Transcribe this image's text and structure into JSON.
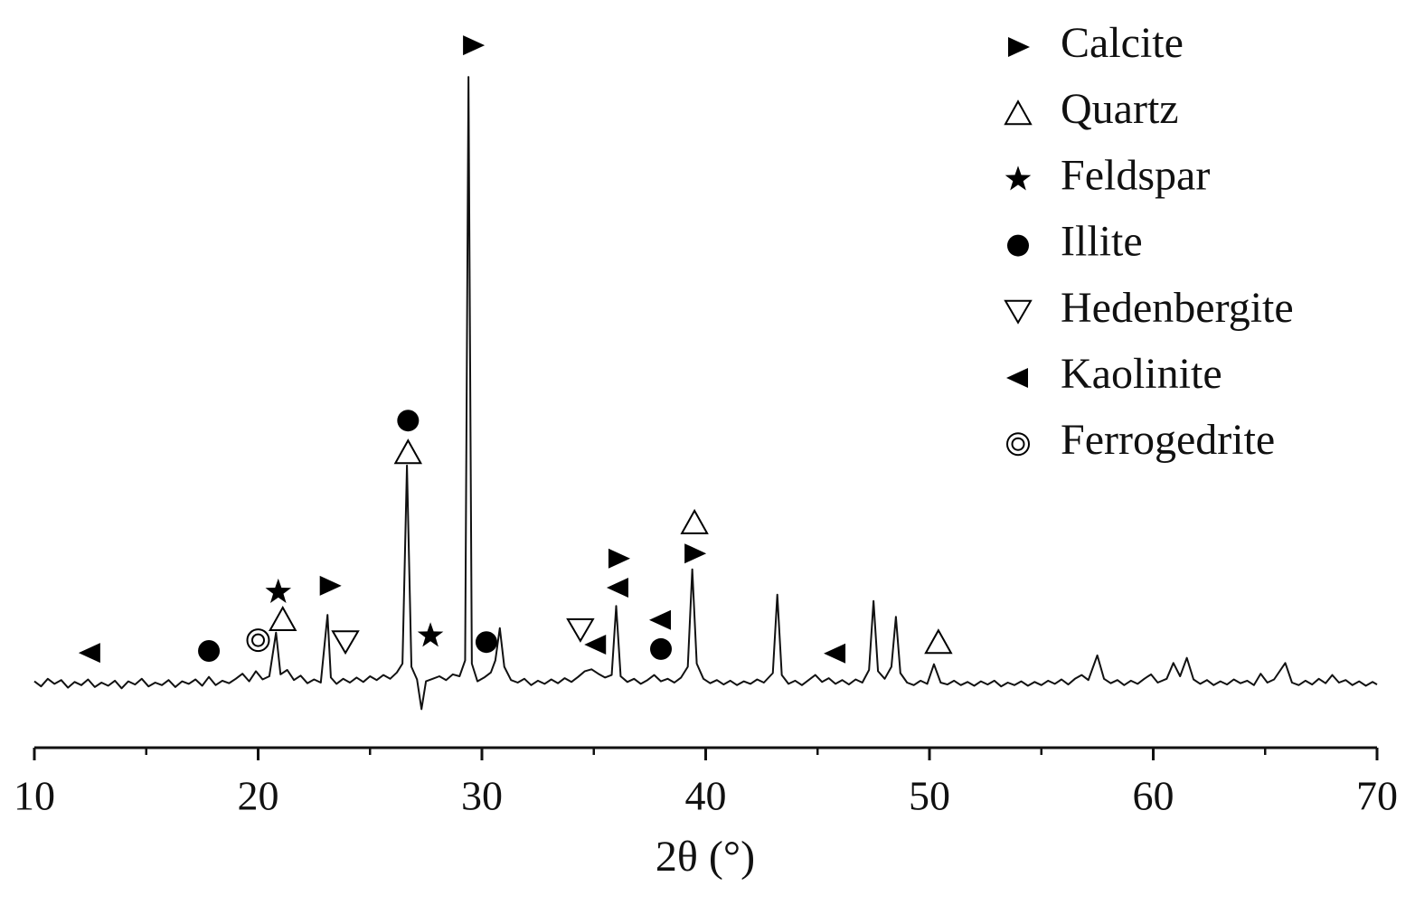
{
  "chart_data": {
    "type": "line",
    "x_label": "2θ (°)",
    "xlim": [
      10,
      70
    ],
    "xticks": [
      10,
      20,
      30,
      40,
      50,
      60,
      70
    ],
    "xminorticks": [
      15,
      25,
      35,
      45,
      55,
      65
    ],
    "ylim": [
      0,
      110
    ],
    "color": "#111111",
    "x": [
      10.0,
      10.3,
      10.6,
      10.9,
      11.2,
      11.5,
      11.8,
      12.1,
      12.4,
      12.7,
      13.0,
      13.3,
      13.6,
      13.9,
      14.2,
      14.5,
      14.8,
      15.1,
      15.4,
      15.7,
      16.0,
      16.3,
      16.6,
      16.9,
      17.2,
      17.5,
      17.8,
      18.1,
      18.4,
      18.7,
      19.0,
      19.3,
      19.6,
      19.9,
      20.2,
      20.5,
      20.8,
      21.0,
      21.3,
      21.6,
      21.9,
      22.2,
      22.5,
      22.8,
      23.1,
      23.25,
      23.5,
      23.8,
      24.1,
      24.4,
      24.7,
      25.0,
      25.3,
      25.6,
      25.9,
      26.2,
      26.45,
      26.65,
      26.85,
      27.1,
      27.3,
      27.5,
      27.8,
      28.1,
      28.4,
      28.7,
      29.0,
      29.25,
      29.4,
      29.55,
      29.8,
      30.1,
      30.4,
      30.6,
      30.8,
      31.0,
      31.3,
      31.6,
      31.9,
      32.2,
      32.5,
      32.8,
      33.1,
      33.4,
      33.7,
      34.0,
      34.3,
      34.6,
      34.9,
      35.2,
      35.5,
      35.8,
      36.0,
      36.2,
      36.5,
      36.8,
      37.1,
      37.4,
      37.7,
      38.0,
      38.3,
      38.6,
      38.9,
      39.2,
      39.4,
      39.6,
      39.9,
      40.2,
      40.5,
      40.8,
      41.1,
      41.4,
      41.7,
      42.0,
      42.3,
      42.6,
      43.0,
      43.2,
      43.4,
      43.7,
      44.0,
      44.3,
      44.6,
      44.9,
      45.2,
      45.5,
      45.8,
      46.1,
      46.4,
      46.7,
      47.0,
      47.3,
      47.5,
      47.7,
      48.0,
      48.3,
      48.5,
      48.7,
      49.0,
      49.3,
      49.6,
      49.9,
      50.2,
      50.5,
      50.8,
      51.1,
      51.4,
      51.7,
      52.0,
      52.3,
      52.6,
      52.9,
      53.2,
      53.5,
      53.8,
      54.1,
      54.4,
      54.7,
      55.0,
      55.3,
      55.6,
      55.9,
      56.2,
      56.5,
      56.8,
      57.1,
      57.5,
      57.8,
      58.1,
      58.4,
      58.7,
      59.0,
      59.3,
      59.6,
      59.9,
      60.2,
      60.6,
      60.9,
      61.2,
      61.5,
      61.8,
      62.1,
      62.4,
      62.7,
      63.0,
      63.3,
      63.6,
      63.9,
      64.2,
      64.5,
      64.8,
      65.1,
      65.4,
      65.9,
      66.2,
      66.5,
      66.8,
      67.1,
      67.4,
      67.7,
      68.0,
      68.3,
      68.6,
      68.9,
      69.2,
      69.5,
      69.8,
      70.0
    ],
    "values": [
      5.2,
      4.4,
      5.6,
      4.8,
      5.4,
      4.2,
      5.1,
      4.6,
      5.5,
      4.3,
      5.0,
      4.5,
      5.3,
      4.1,
      5.2,
      4.7,
      5.6,
      4.4,
      5.0,
      4.6,
      5.4,
      4.3,
      5.2,
      4.8,
      5.5,
      4.5,
      5.9,
      4.6,
      5.3,
      4.9,
      5.6,
      6.4,
      5.2,
      6.8,
      5.5,
      6.0,
      12.9,
      6.3,
      7.0,
      5.4,
      6.1,
      4.9,
      5.5,
      5.0,
      15.7,
      5.8,
      4.8,
      5.6,
      5.0,
      5.8,
      5.1,
      6.0,
      5.4,
      6.2,
      5.6,
      6.6,
      8.0,
      39.3,
      7.5,
      5.5,
      0.8,
      5.2,
      5.6,
      6.0,
      5.4,
      6.3,
      6.0,
      8.5,
      100.7,
      8.0,
      5.2,
      5.8,
      6.6,
      8.5,
      13.6,
      7.5,
      5.4,
      5.0,
      5.6,
      4.6,
      5.3,
      4.8,
      5.5,
      4.9,
      5.7,
      5.1,
      5.9,
      6.8,
      7.1,
      6.4,
      5.8,
      6.2,
      17.1,
      6.0,
      5.1,
      5.6,
      4.8,
      5.4,
      6.2,
      5.2,
      5.6,
      5.0,
      5.8,
      7.5,
      22.9,
      8.0,
      5.6,
      4.9,
      5.4,
      4.7,
      5.3,
      4.6,
      5.2,
      4.8,
      5.5,
      5.0,
      6.5,
      18.9,
      6.2,
      4.8,
      5.3,
      4.6,
      5.4,
      6.2,
      5.1,
      5.7,
      4.8,
      5.4,
      4.7,
      5.5,
      5.0,
      7.0,
      17.9,
      6.8,
      5.6,
      7.5,
      15.4,
      6.5,
      5.0,
      4.6,
      5.3,
      4.8,
      7.9,
      5.0,
      4.7,
      5.3,
      4.6,
      5.1,
      4.5,
      5.2,
      4.7,
      5.3,
      4.4,
      5.0,
      4.6,
      5.2,
      4.5,
      5.1,
      4.6,
      5.3,
      4.8,
      5.5,
      4.7,
      5.6,
      6.2,
      5.4,
      9.3,
      5.6,
      4.9,
      5.4,
      4.6,
      5.3,
      4.8,
      5.6,
      6.3,
      5.0,
      5.6,
      8.1,
      6.0,
      8.9,
      5.5,
      4.8,
      5.4,
      4.6,
      5.2,
      4.7,
      5.5,
      4.9,
      5.3,
      4.6,
      6.4,
      5.0,
      5.5,
      8.1,
      5.0,
      4.6,
      5.3,
      4.7,
      5.6,
      4.9,
      6.2,
      5.0,
      5.4,
      4.6,
      5.2,
      4.5,
      5.1,
      4.7
    ],
    "phases": [
      {
        "name": "Calcite",
        "marker": "triangle-right",
        "x": [
          29.6,
          23.2,
          36.1,
          39.5
        ],
        "y": [
          105.7,
          20.3,
          24.6,
          25.4
        ]
      },
      {
        "name": "Quartz",
        "marker": "triangle-up-open",
        "x": [
          21.1,
          26.7,
          39.5,
          50.4
        ],
        "y": [
          15.0,
          41.4,
          30.3,
          11.4
        ]
      },
      {
        "name": "Feldspar",
        "marker": "star",
        "x": [
          20.9,
          27.7
        ],
        "y": [
          19.3,
          12.4
        ]
      },
      {
        "name": "Illite",
        "marker": "circle",
        "x": [
          17.8,
          26.7,
          30.2,
          38.0
        ],
        "y": [
          10.0,
          46.4,
          11.4,
          10.3
        ]
      },
      {
        "name": "Hedenbergite",
        "marker": "triangle-down-open",
        "x": [
          23.9,
          34.4
        ],
        "y": [
          11.4,
          13.3
        ]
      },
      {
        "name": "Kaolinite",
        "marker": "triangle-left",
        "x": [
          12.5,
          36.1,
          38.0,
          35.1,
          45.8
        ],
        "y": [
          9.7,
          20.0,
          14.9,
          11.0,
          9.6
        ]
      },
      {
        "name": "Ferrogedrite",
        "marker": "double-circle",
        "x": [
          20.0
        ],
        "y": [
          11.7
        ]
      }
    ]
  }
}
